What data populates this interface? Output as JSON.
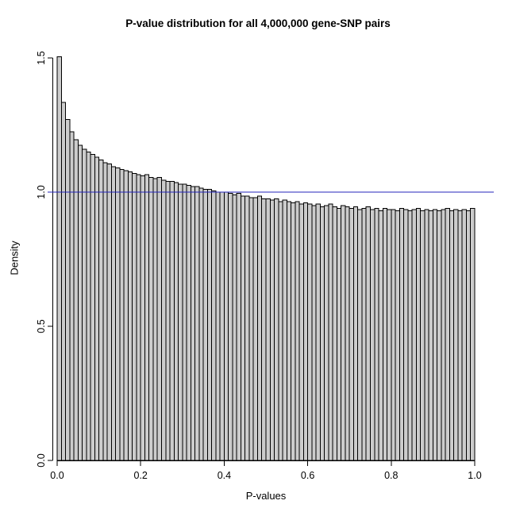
{
  "chart_data": {
    "type": "bar",
    "title": "P-value distribution for all 4,000,000 gene-SNP pairs",
    "xlabel": "P-values",
    "ylabel": "Density",
    "xlim": [
      0,
      1
    ],
    "ylim": [
      0,
      1.5
    ],
    "bin_width": 0.01,
    "grid": false,
    "bar_fill": "#cccccc",
    "bar_stroke": "#000000",
    "axis_color": "#000000",
    "background": "#ffffff",
    "hline": {
      "y": 1.0,
      "color": "#2525bb"
    },
    "x_ticks": [
      {
        "v": 0.0,
        "label": "0.0"
      },
      {
        "v": 0.2,
        "label": "0.2"
      },
      {
        "v": 0.4,
        "label": "0.4"
      },
      {
        "v": 0.6,
        "label": "0.6"
      },
      {
        "v": 0.8,
        "label": "0.8"
      },
      {
        "v": 1.0,
        "label": "1.0"
      }
    ],
    "y_ticks": [
      {
        "v": 0.0,
        "label": "0.0"
      },
      {
        "v": 0.5,
        "label": "0.5"
      },
      {
        "v": 1.0,
        "label": "1.0"
      },
      {
        "v": 1.5,
        "label": "1.5"
      }
    ],
    "values": [
      1.505,
      1.335,
      1.27,
      1.225,
      1.195,
      1.175,
      1.16,
      1.15,
      1.14,
      1.13,
      1.12,
      1.11,
      1.105,
      1.095,
      1.09,
      1.085,
      1.08,
      1.075,
      1.07,
      1.065,
      1.06,
      1.065,
      1.055,
      1.05,
      1.055,
      1.045,
      1.04,
      1.04,
      1.035,
      1.03,
      1.03,
      1.025,
      1.02,
      1.02,
      1.015,
      1.01,
      1.01,
      1.005,
      1.0,
      1.0,
      1.0,
      0.995,
      0.99,
      0.995,
      0.985,
      0.985,
      0.98,
      0.98,
      0.985,
      0.975,
      0.975,
      0.97,
      0.975,
      0.965,
      0.97,
      0.965,
      0.96,
      0.965,
      0.955,
      0.96,
      0.955,
      0.95,
      0.955,
      0.945,
      0.95,
      0.955,
      0.945,
      0.94,
      0.95,
      0.945,
      0.94,
      0.945,
      0.935,
      0.94,
      0.945,
      0.935,
      0.94,
      0.93,
      0.94,
      0.935,
      0.935,
      0.93,
      0.94,
      0.935,
      0.93,
      0.935,
      0.94,
      0.93,
      0.935,
      0.93,
      0.935,
      0.93,
      0.935,
      0.94,
      0.93,
      0.935,
      0.93,
      0.935,
      0.93,
      0.94
    ]
  }
}
